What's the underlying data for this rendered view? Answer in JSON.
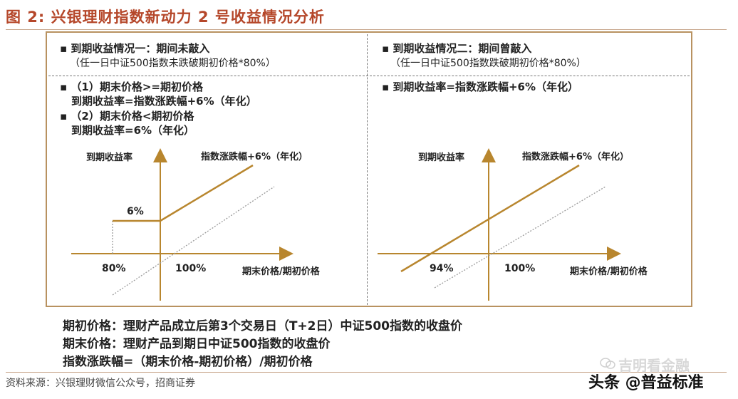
{
  "figure": {
    "title": "图 2:  兴银理财指数新动力 2 号收益情况分析"
  },
  "left": {
    "heading": "到期收益情况一：期间未敲入",
    "heading_sub": "（任一日中证500指数未跌破期初价格*80%）",
    "case1_line1": "（1）期末价格>=期初价格",
    "case1_line2": "到期收益率=指数涨跌幅+6%（年化）",
    "case2_line1": "（2）期末价格<期初价格",
    "case2_line2": "到期收益率=6%（年化）",
    "chart": {
      "ylabel": "到期收益率",
      "line_label": "指数涨跌幅+6%（年化）",
      "level_label": "6%",
      "tick_80": "80%",
      "tick_100": "100%",
      "xlabel": "期末价格/期初价格"
    }
  },
  "right": {
    "heading": "到期收益情况二：期间曾敲入",
    "heading_sub": "（任一日中证500指数跌破期初价格*80%）",
    "formula": "到期收益率=指数涨跌幅+6%（年化）",
    "chart": {
      "ylabel": "到期收益率",
      "line_label": "指数涨跌幅+6%（年化）",
      "tick_94": "94%",
      "tick_100": "100%",
      "xlabel": "期末价格/期初价格"
    }
  },
  "notes": {
    "line1": "期初价格：理财产品成立后第3个交易日（T+2日）中证500指数的收盘价",
    "line2": "期末价格：理财产品到期日中证500指数的收盘价",
    "line3": "指数涨跌幅=（期末价格-期初价格）/期初价格"
  },
  "source": "资料来源：兴银理财微信公众号，招商证券",
  "watermark": {
    "line1": "吉明看金融",
    "line2": "头条 @普益标准"
  },
  "colors": {
    "title": "#b5472a",
    "payoff_line": "#b8862e",
    "reference_line": "#9a9a9a",
    "panel_border": "#b89260"
  }
}
